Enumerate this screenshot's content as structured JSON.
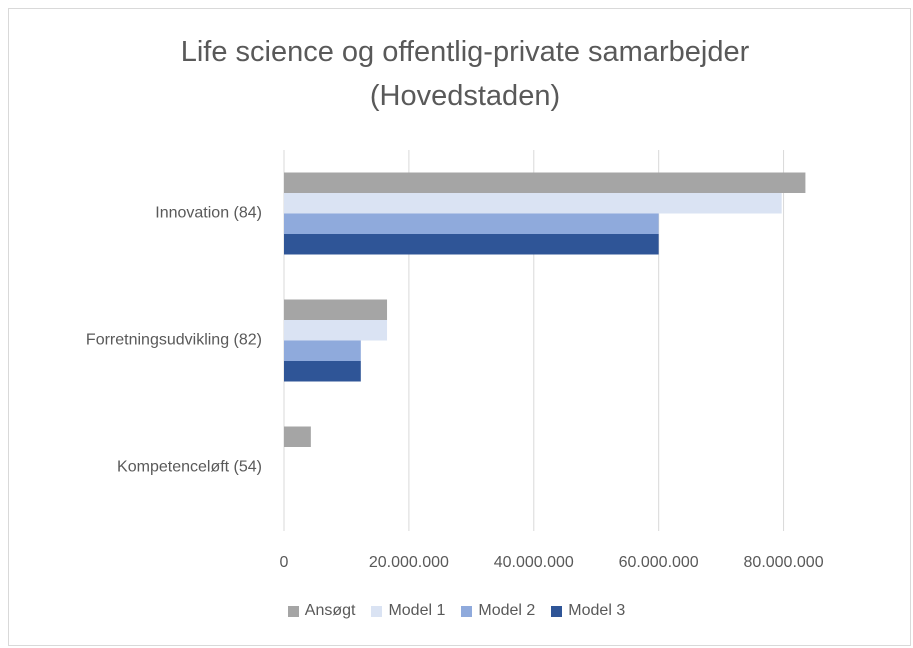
{
  "chart_data": {
    "type": "bar",
    "orientation": "horizontal",
    "title": "Life science og offentlig-private samarbejder (Hovedstaden)",
    "categories": [
      "Innovation (84)",
      "Forretningsudvikling (82)",
      "Kompetenceløft (54)"
    ],
    "series": [
      {
        "name": "Ansøgt",
        "color": "#a5a5a5",
        "values": [
          83500000,
          16500000,
          4300000
        ]
      },
      {
        "name": "Model 1",
        "color": "#dae3f3",
        "values": [
          79700000,
          16500000,
          0
        ]
      },
      {
        "name": "Model 2",
        "color": "#8faadc",
        "values": [
          60000000,
          12300000,
          0
        ]
      },
      {
        "name": "Model 3",
        "color": "#2f5597",
        "values": [
          60000000,
          12300000,
          0
        ]
      }
    ],
    "xlim": [
      0,
      90000000
    ],
    "xticks": [
      0,
      {
        "value": 20000000,
        "label": "20.000.000"
      },
      {
        "value": 40000000,
        "label": "40.000.000"
      },
      {
        "value": 60000000,
        "label": "60.000.000"
      },
      {
        "value": 80000000,
        "label": "80.000.000"
      }
    ],
    "grid": true,
    "legend": "bottom"
  }
}
